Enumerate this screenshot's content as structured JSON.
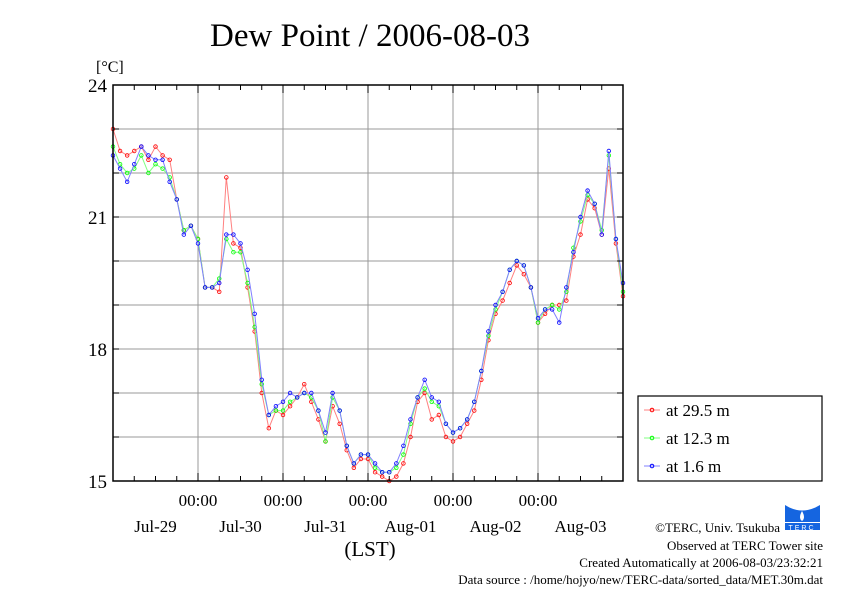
{
  "chart_data": {
    "type": "line",
    "title": "Dew Point / 2006-08-03",
    "ylabel": "[°C]",
    "xlabel": "(LST)",
    "ylim": [
      15,
      24
    ],
    "yticks": [
      15,
      18,
      21,
      24
    ],
    "y_grid_step": 1,
    "x_start": "2006-07-29 00:00",
    "x_step_hours": 2,
    "x_range_hours": [
      0,
      144
    ],
    "x_major_labels": [
      "00:00",
      "00:00",
      "00:00",
      "00:00",
      "00:00"
    ],
    "x_major_hours": [
      24,
      48,
      72,
      96,
      120
    ],
    "x_date_labels": [
      "Jul-29",
      "Jul-30",
      "Jul-31",
      "Aug-01",
      "Aug-02",
      "Aug-03"
    ],
    "grid": true,
    "legend_position": "right-bottom outside",
    "series": [
      {
        "name": "at 29.5 m",
        "color": "#ff0000",
        "values": [
          23.0,
          22.5,
          22.4,
          22.5,
          22.6,
          22.3,
          22.6,
          22.4,
          22.3,
          21.4,
          20.7,
          20.8,
          20.5,
          19.4,
          19.4,
          19.3,
          21.9,
          20.4,
          20.3,
          19.4,
          18.4,
          17.0,
          16.2,
          16.6,
          16.5,
          16.7,
          16.9,
          17.2,
          16.8,
          16.4,
          15.9,
          16.7,
          16.3,
          15.7,
          15.3,
          15.5,
          15.5,
          15.2,
          15.1,
          15.0,
          15.1,
          15.4,
          16.0,
          16.8,
          17.0,
          16.4,
          16.5,
          16.0,
          15.9,
          16.0,
          16.3,
          16.6,
          17.3,
          18.2,
          18.8,
          19.1,
          19.5,
          19.9,
          19.7,
          19.4,
          18.6,
          18.8,
          19.0,
          19.0,
          19.1,
          20.1,
          20.6,
          21.4,
          21.2,
          20.6,
          22.1,
          20.4,
          19.2
        ]
      },
      {
        "name": "at 12.3 m",
        "color": "#00ff00",
        "values": [
          22.6,
          22.2,
          22.0,
          22.1,
          22.4,
          22.0,
          22.2,
          22.1,
          21.9,
          21.4,
          20.7,
          20.8,
          20.5,
          19.4,
          19.4,
          19.6,
          20.5,
          20.2,
          20.2,
          19.5,
          18.5,
          17.2,
          16.5,
          16.6,
          16.6,
          16.8,
          16.9,
          17.0,
          16.9,
          16.6,
          15.9,
          16.9,
          16.6,
          15.8,
          15.4,
          15.6,
          15.6,
          15.3,
          15.2,
          15.2,
          15.3,
          15.6,
          16.3,
          16.9,
          17.1,
          16.8,
          16.7,
          16.3,
          16.1,
          16.2,
          16.4,
          16.8,
          17.5,
          18.3,
          18.9,
          19.3,
          19.8,
          20.0,
          19.9,
          19.4,
          18.6,
          18.9,
          19.0,
          18.9,
          19.3,
          20.3,
          20.9,
          21.5,
          21.3,
          20.7,
          22.4,
          20.5,
          19.3
        ]
      },
      {
        "name": "at 1.6 m",
        "color": "#0000ff",
        "values": [
          22.4,
          22.1,
          21.8,
          22.2,
          22.6,
          22.4,
          22.3,
          22.3,
          21.8,
          21.4,
          20.6,
          20.8,
          20.4,
          19.4,
          19.4,
          19.5,
          20.6,
          20.6,
          20.4,
          19.8,
          18.8,
          17.3,
          16.5,
          16.7,
          16.8,
          17.0,
          16.9,
          17.0,
          17.0,
          16.6,
          16.1,
          17.0,
          16.6,
          15.8,
          15.4,
          15.6,
          15.6,
          15.4,
          15.2,
          15.2,
          15.4,
          15.8,
          16.4,
          16.9,
          17.3,
          16.9,
          16.8,
          16.3,
          16.1,
          16.2,
          16.4,
          16.8,
          17.5,
          18.4,
          19.0,
          19.3,
          19.8,
          20.0,
          19.9,
          19.4,
          18.7,
          18.9,
          18.9,
          18.6,
          19.4,
          20.2,
          21.0,
          21.6,
          21.3,
          20.6,
          22.5,
          20.5,
          19.5
        ]
      }
    ]
  },
  "footer": {
    "copyright": "©TERC, Univ. Tsukuba",
    "observed": "Observed at TERC Tower site",
    "created": "Created Automatically at 2006-08-03/23:32:21",
    "source": "Data source : /home/hojyo/new/TERC-data/sorted_data/MET.30m.dat",
    "logo_text": "TERC"
  }
}
